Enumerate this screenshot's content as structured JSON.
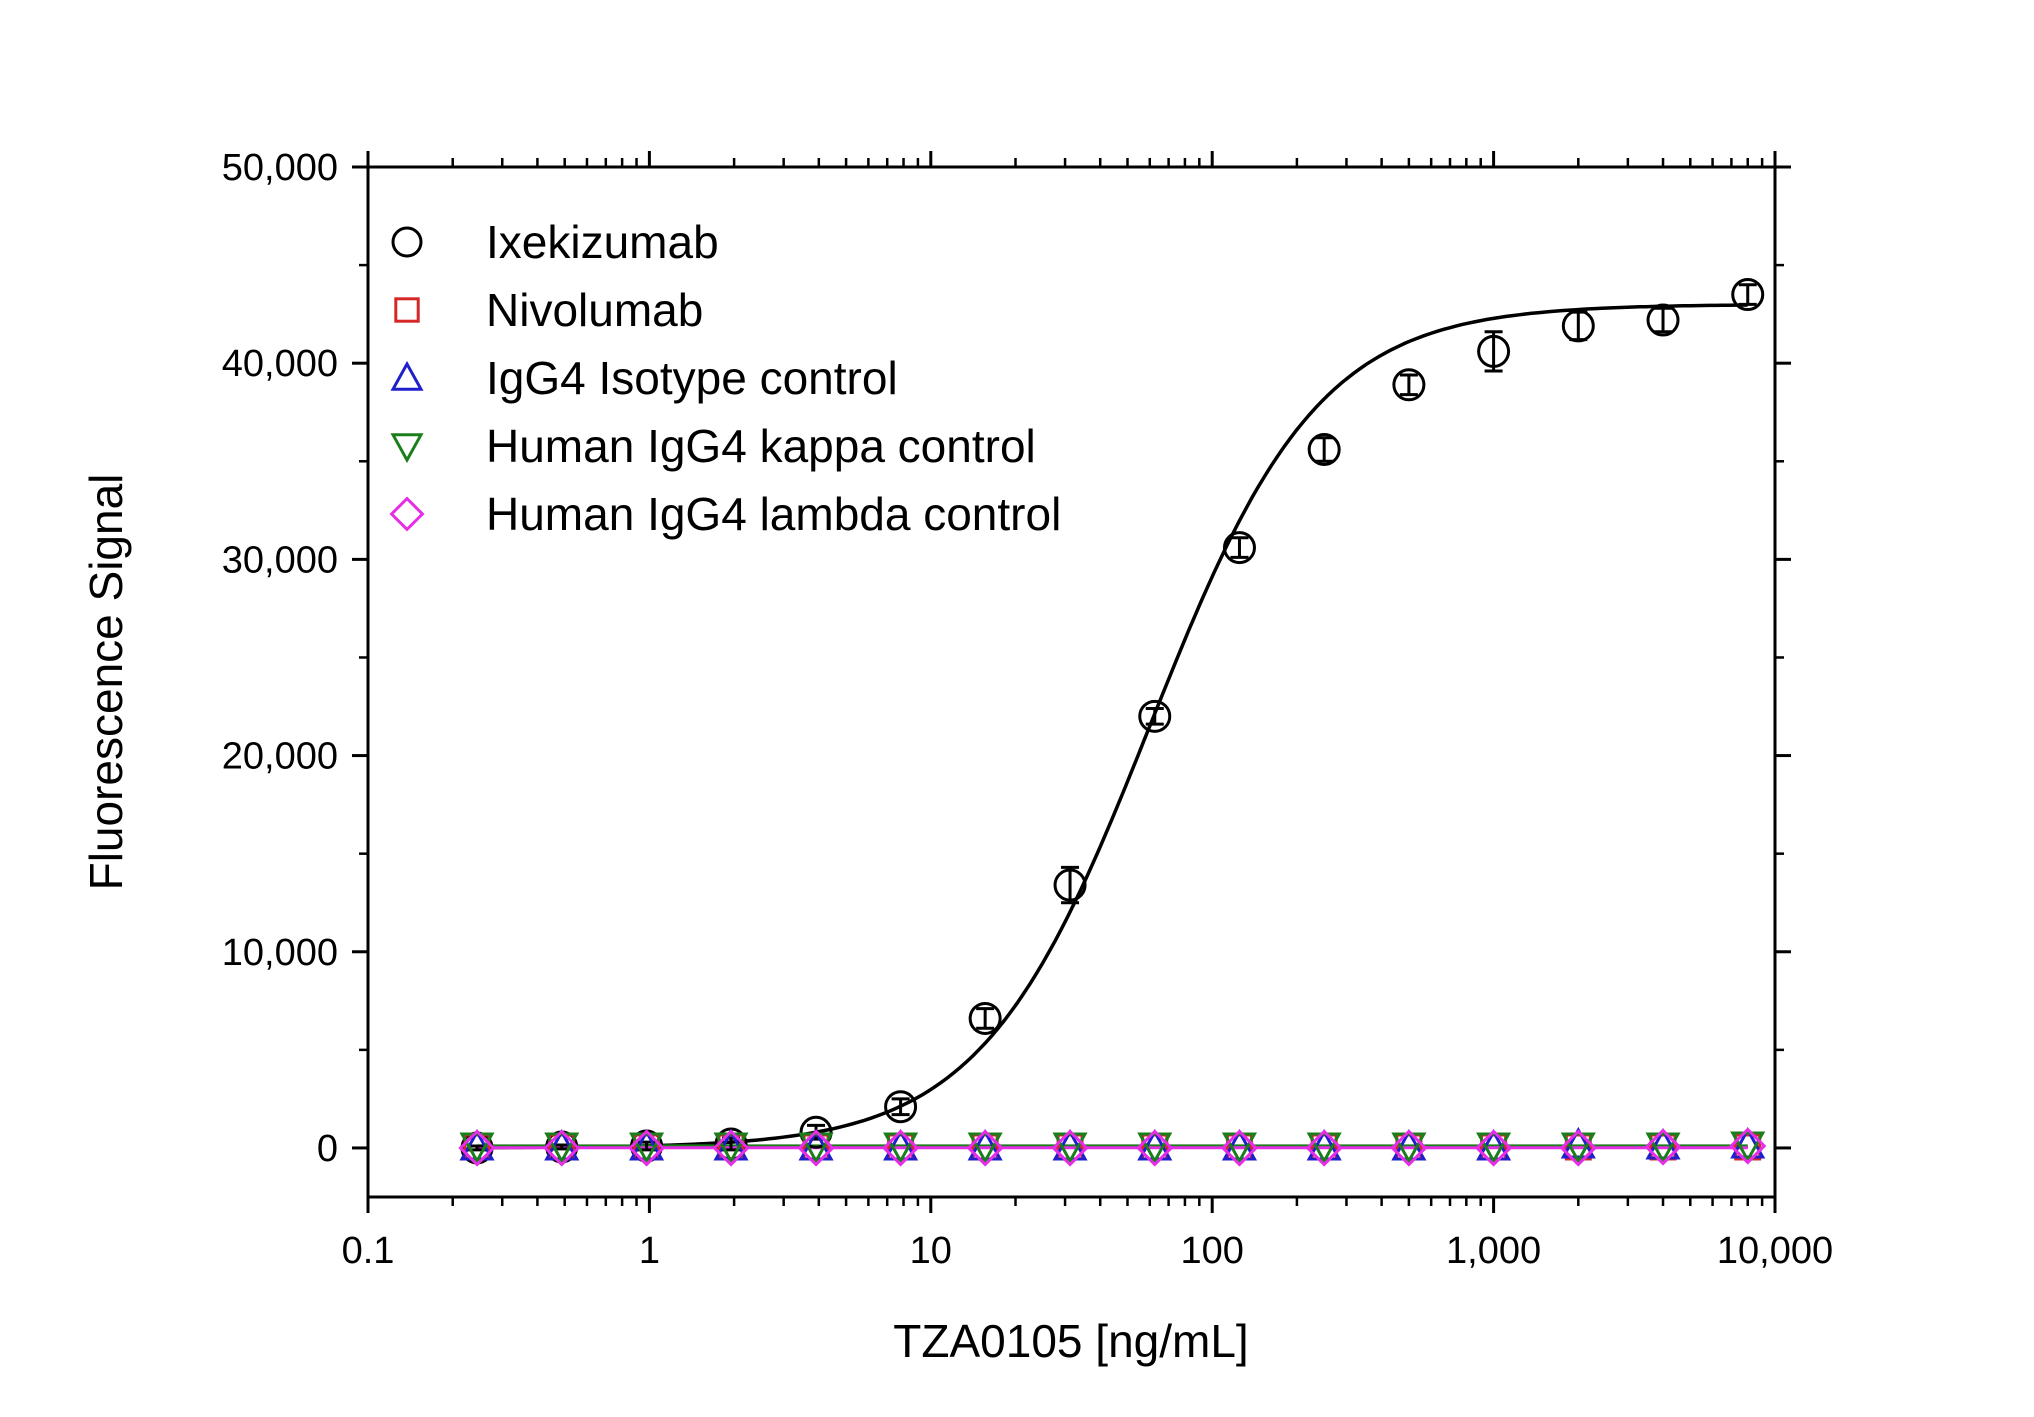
{
  "chart_data": {
    "type": "scatter",
    "xlabel": "TZA0105 [ng/mL]",
    "ylabel": "Fluorescence Signal",
    "x_scale": "log",
    "xlim": [
      0.1,
      10000
    ],
    "ylim": [
      -2500,
      50000
    ],
    "x_ticks": [
      {
        "value": 0.1,
        "label": "0.1"
      },
      {
        "value": 1,
        "label": "1"
      },
      {
        "value": 10,
        "label": "10"
      },
      {
        "value": 100,
        "label": "100"
      },
      {
        "value": 1000,
        "label": "1,000"
      },
      {
        "value": 10000,
        "label": "10,000"
      }
    ],
    "y_ticks": [
      {
        "value": 0,
        "label": "0"
      },
      {
        "value": 10000,
        "label": "10,000"
      },
      {
        "value": 20000,
        "label": "20,000"
      },
      {
        "value": 30000,
        "label": "30,000"
      },
      {
        "value": 40000,
        "label": "40,000"
      },
      {
        "value": 50000,
        "label": "50,000"
      }
    ],
    "grid": false,
    "legend_position": "top-left",
    "x": [
      0.244,
      0.488,
      0.977,
      1.95,
      3.91,
      7.81,
      15.6,
      31.25,
      62.5,
      125,
      250,
      500,
      1000,
      2000,
      4000,
      8000
    ],
    "series": [
      {
        "name": "Ixekizumab",
        "marker": "circle",
        "color": "#000000",
        "values": [
          0,
          50,
          100,
          200,
          800,
          2100,
          6600,
          13400,
          22000,
          30600,
          35600,
          38900,
          40600,
          41900,
          42200,
          43500
        ],
        "errors": [
          100,
          100,
          200,
          300,
          350,
          400,
          500,
          900,
          400,
          500,
          600,
          500,
          1000,
          700,
          600,
          500
        ],
        "fit": {
          "model": "4PL",
          "bottom": 0,
          "top": 43000,
          "ec50": 60,
          "hill": 1.45
        }
      },
      {
        "name": "Nivolumab",
        "marker": "square",
        "color": "#d62728",
        "values": [
          50,
          50,
          50,
          50,
          50,
          50,
          50,
          50,
          50,
          50,
          50,
          50,
          50,
          50,
          50,
          50
        ]
      },
      {
        "name": "IgG4 Isotype control",
        "marker": "triangle-up",
        "color": "#1f1fcc",
        "values": [
          50,
          50,
          50,
          50,
          50,
          50,
          50,
          50,
          50,
          50,
          50,
          50,
          50,
          150,
          100,
          150
        ]
      },
      {
        "name": "Human IgG4 kappa control",
        "marker": "triangle-down",
        "color": "#1a7f1a",
        "values": [
          100,
          100,
          100,
          100,
          100,
          100,
          100,
          100,
          100,
          100,
          100,
          100,
          100,
          100,
          100,
          150
        ]
      },
      {
        "name": "Human IgG4 lambda control",
        "marker": "diamond",
        "color": "#e62ee6",
        "values": [
          0,
          0,
          0,
          0,
          0,
          0,
          0,
          0,
          0,
          0,
          0,
          0,
          0,
          0,
          50,
          100
        ]
      }
    ]
  }
}
